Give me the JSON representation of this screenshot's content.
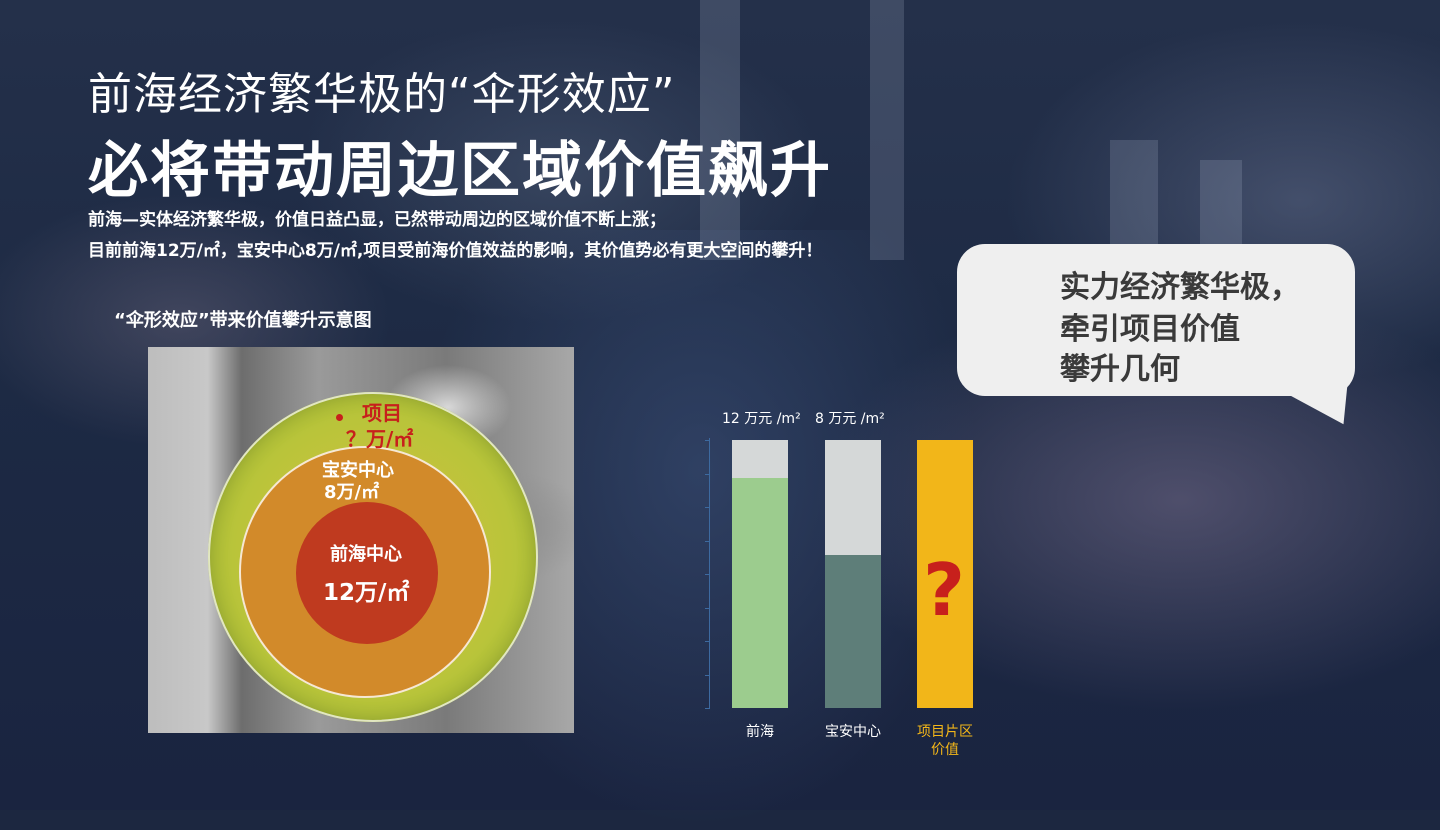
{
  "title_line1": "前海经济繁华极的“伞形效应”",
  "title_line2": "必将带动周边区域价值飙升",
  "desc_line1": "前海—实体经济繁华极，价值日益凸显，已然带动周边的区域价值不断上涨；",
  "desc_line2": "目前前海12万/㎡，宝安中心8万/㎡,项目受前海价值效益的影响，其价值势必有更大空间的攀升！",
  "diagram_caption": "“伞形效应”带来价值攀升示意图",
  "map": {
    "outer_name": "项目",
    "outer_price": "？万/㎡",
    "mid_name": "宝安中心",
    "mid_price": "8万/㎡",
    "inner_name": "前海中心",
    "inner_price": "12万/㎡",
    "colors": {
      "inner": "#bf3a1f",
      "mid": "#d28a2a",
      "outer": "#b9c43a",
      "project": "#c7201c"
    }
  },
  "bubble": {
    "lines": [
      "实力经济繁华极，",
      "牵引项目价值",
      "攀升几何"
    ]
  },
  "chart_data": {
    "type": "bar",
    "categories": [
      "前海",
      "宝安中心",
      "项目片区价值"
    ],
    "category_lines": [
      [
        "前海"
      ],
      [
        "宝安中心"
      ],
      [
        "项目片区",
        "价值"
      ]
    ],
    "head_labels": [
      "12 万元 /m²",
      "8 万元 /m²",
      ""
    ],
    "values": [
      12,
      8,
      null
    ],
    "unknown_marker": "?",
    "colors": {
      "qianhai": "#9ccc8e",
      "baoan": "#5e7e79",
      "project": "#f2b619",
      "cap": "#d5d8d8",
      "project_label": "#f2b619",
      "label": "#ffffff"
    },
    "ylim": [
      0,
      14
    ]
  }
}
